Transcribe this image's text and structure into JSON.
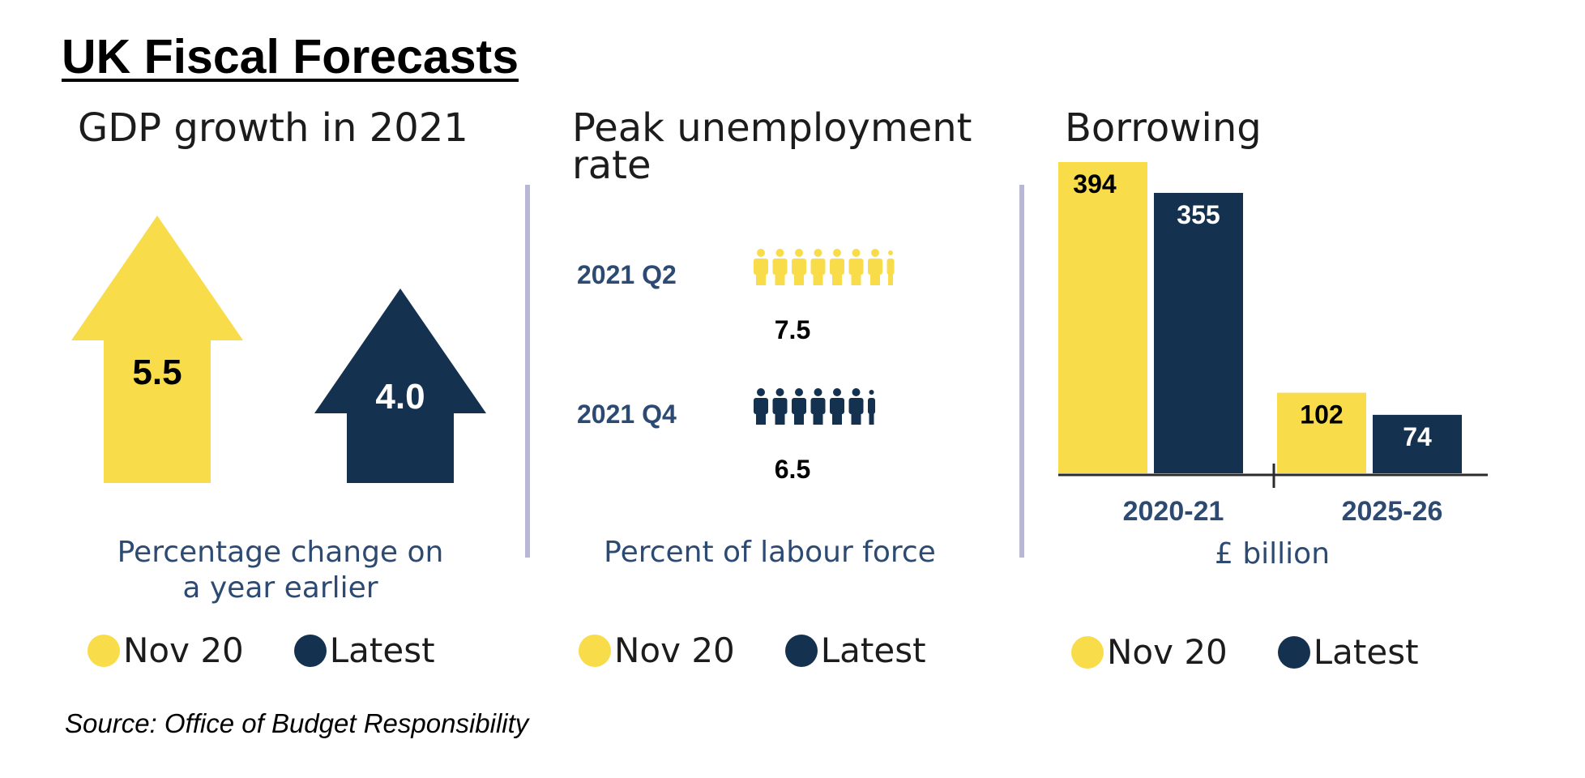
{
  "title": "UK Fiscal Forecasts",
  "source": "Source: Office of Budget Responsibility",
  "colors": {
    "nov20": "#f9dc4a",
    "latest": "#14324f",
    "caption": "#2d4a72",
    "divider": "#b8b7d6"
  },
  "legend": {
    "nov20": "Nov 20",
    "latest": "Latest"
  },
  "panels": {
    "gdp": {
      "title": "GDP growth in 2021",
      "caption_line1": "Percentage change on",
      "caption_line2": "a year earlier"
    },
    "unemployment": {
      "title_line1": "Peak unemployment",
      "title_line2": "rate",
      "caption": "Percent of labour force"
    },
    "borrowing": {
      "title": "Borrowing",
      "caption": "£ billion"
    }
  },
  "chart_data": [
    {
      "type": "bar",
      "title": "GDP growth in 2021",
      "categories": [
        "Nov 20",
        "Latest"
      ],
      "values": [
        5.5,
        4.0
      ],
      "value_labels": [
        "5.5",
        "4.0"
      ],
      "unit": "Percentage change on a year earlier",
      "marker": "arrow"
    },
    {
      "type": "bar",
      "title": "Peak unemployment rate",
      "categories": [
        "2021 Q2",
        "2021 Q4"
      ],
      "values": [
        7.5,
        6.5
      ],
      "value_labels": [
        "7.5",
        "6.5"
      ],
      "series_by_category": [
        "Nov 20",
        "Latest"
      ],
      "unit": "Percent of labour force",
      "marker": "pictogram"
    },
    {
      "type": "bar",
      "title": "Borrowing",
      "categories": [
        "2020-21",
        "2025-26"
      ],
      "series": [
        {
          "name": "Nov 20",
          "values": [
            394,
            102
          ],
          "labels": [
            "394",
            "102"
          ]
        },
        {
          "name": "Latest",
          "values": [
            355,
            74
          ],
          "labels": [
            "355",
            "74"
          ]
        }
      ],
      "ylabel": "£ billion",
      "ylim": [
        0,
        394
      ]
    }
  ]
}
